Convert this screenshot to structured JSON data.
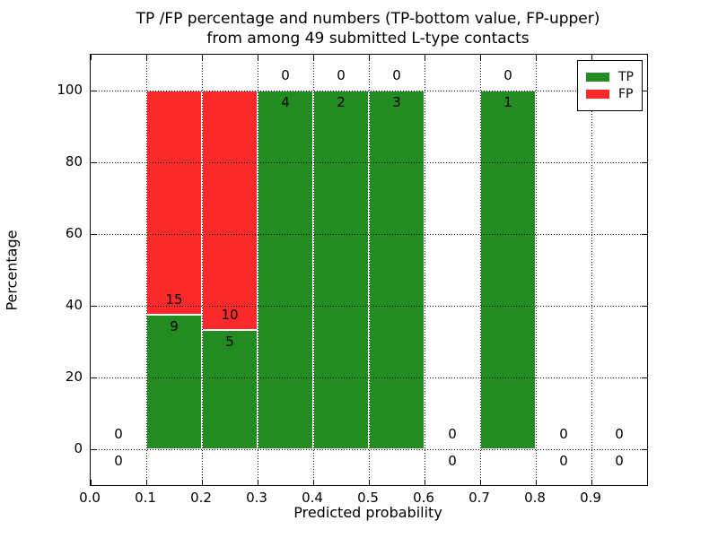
{
  "chart_data": {
    "type": "bar",
    "stacked": true,
    "title_line1": "TP /FP percentage and numbers (TP-bottom value, FP-upper)",
    "title_line2": "from among 49 submitted L-type contacts",
    "xlabel": "Predicted probability",
    "ylabel": "Percentage",
    "xlim": [
      0.0,
      1.0
    ],
    "ylim": [
      -10,
      110
    ],
    "xticks": [
      0.0,
      0.1,
      0.2,
      0.3,
      0.4,
      0.5,
      0.6,
      0.7,
      0.8,
      0.9
    ],
    "xtick_labels": [
      "0.0",
      "0.1",
      "0.2",
      "0.3",
      "0.4",
      "0.5",
      "0.6",
      "0.7",
      "0.8",
      "0.9"
    ],
    "yticks": [
      0,
      20,
      40,
      60,
      80,
      100
    ],
    "ytick_labels": [
      "0",
      "20",
      "40",
      "60",
      "80",
      "100"
    ],
    "grid": true,
    "grid_style": "dotted",
    "legend_position": "upper right",
    "bins": [
      {
        "range": [
          0.0,
          0.1
        ],
        "tp": 0,
        "fp": 0
      },
      {
        "range": [
          0.1,
          0.2
        ],
        "tp": 9,
        "fp": 15
      },
      {
        "range": [
          0.2,
          0.3
        ],
        "tp": 5,
        "fp": 10
      },
      {
        "range": [
          0.3,
          0.4
        ],
        "tp": 4,
        "fp": 0
      },
      {
        "range": [
          0.4,
          0.5
        ],
        "tp": 2,
        "fp": 0
      },
      {
        "range": [
          0.5,
          0.6
        ],
        "tp": 3,
        "fp": 0
      },
      {
        "range": [
          0.6,
          0.7
        ],
        "tp": 0,
        "fp": 0
      },
      {
        "range": [
          0.7,
          0.8
        ],
        "tp": 1,
        "fp": 0
      },
      {
        "range": [
          0.8,
          0.9
        ],
        "tp": 0,
        "fp": 0
      },
      {
        "range": [
          0.9,
          1.0
        ],
        "tp": 0,
        "fp": 0
      }
    ],
    "legend": [
      {
        "label": "TP",
        "color": "#228b22"
      },
      {
        "label": "FP",
        "color": "#fa2a2a"
      }
    ],
    "colors": {
      "tp": "#228b22",
      "fp": "#fa2a2a",
      "bar_edge": "#ffffff",
      "grid": "#000000",
      "text": "#000000",
      "background": "#ffffff"
    }
  }
}
